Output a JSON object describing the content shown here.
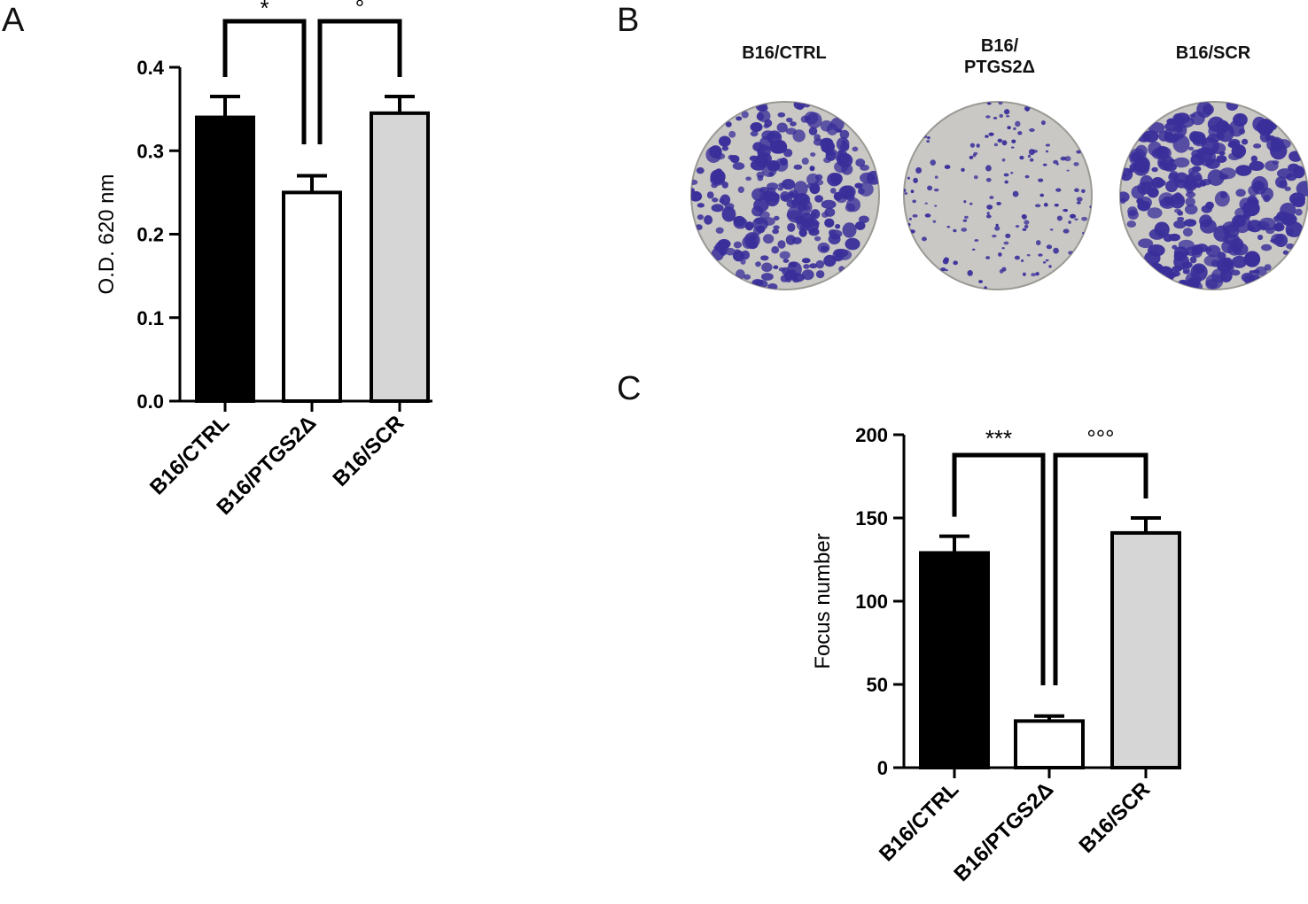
{
  "panels": {
    "a": {
      "letter": "A"
    },
    "b": {
      "letter": "B",
      "plates": [
        "B16/CTRL",
        "B16/\nPTGS2Δ",
        "B16/SCR"
      ]
    },
    "c": {
      "letter": "C"
    }
  },
  "colors": {
    "ctrl": "#000000",
    "ptgs2": "#ffffff",
    "scr": "#d6d6d6",
    "axis": "#000000",
    "stain": "#3a2f9a",
    "plate": "#c9c8c4"
  },
  "chart_data": [
    {
      "id": "A",
      "type": "bar",
      "categories": [
        "B16/CTRL",
        "B16/PTGS2Δ",
        "B16/SCR"
      ],
      "values": [
        0.34,
        0.25,
        0.345
      ],
      "errors": [
        0.025,
        0.02,
        0.02
      ],
      "ylabel": "O.D. 620 nm",
      "xlabel": "",
      "ylim": [
        0,
        0.4
      ],
      "yticks": [
        "0.0",
        "0.1",
        "0.2",
        "0.3",
        "0.4"
      ],
      "significance": [
        {
          "from": 0,
          "to": 1,
          "label": "*"
        },
        {
          "from": 1,
          "to": 2,
          "label": "°"
        }
      ]
    },
    {
      "id": "C",
      "type": "bar",
      "categories": [
        "B16/CTRL",
        "B16/PTGS2Δ",
        "B16/SCR"
      ],
      "values": [
        129,
        28,
        141
      ],
      "errors": [
        10,
        3,
        9
      ],
      "ylabel": "Focus number",
      "xlabel": "",
      "ylim": [
        0,
        200
      ],
      "yticks": [
        "0",
        "50",
        "100",
        "150",
        "200"
      ],
      "significance": [
        {
          "from": 0,
          "to": 1,
          "label": "***"
        },
        {
          "from": 1,
          "to": 2,
          "label": "°°°"
        }
      ]
    }
  ]
}
